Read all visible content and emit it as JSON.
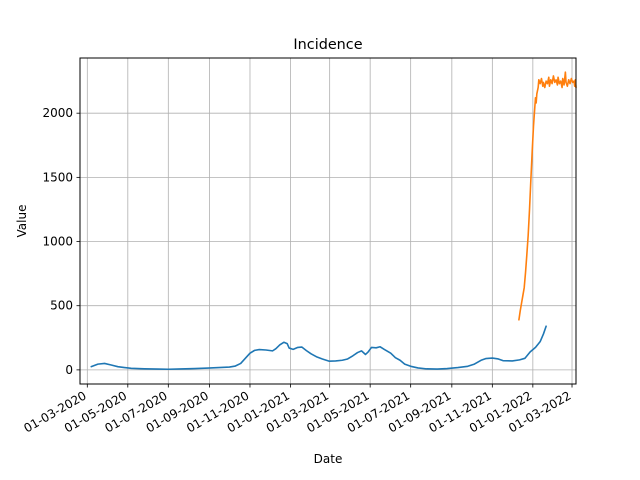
{
  "chart_data": {
    "type": "line",
    "title": "Incidence",
    "xlabel": "Date",
    "ylabel": "Value",
    "x_ticks": [
      "01-03-2020",
      "01-05-2020",
      "01-07-2020",
      "01-09-2020",
      "01-11-2020",
      "01-01-2021",
      "01-03-2021",
      "01-05-2021",
      "01-07-2021",
      "01-09-2021",
      "01-11-2021",
      "01-01-2022",
      "01-03-2022"
    ],
    "y_ticks": [
      0,
      500,
      1000,
      1500,
      2000
    ],
    "xlim": [
      "2020-02-19",
      "2022-03-07"
    ],
    "ylim": [
      -110,
      2430
    ],
    "grid": true,
    "series": [
      {
        "color": "#1f77b4",
        "points": [
          [
            "2020-03-07",
            25
          ],
          [
            "2020-03-17",
            45
          ],
          [
            "2020-03-27",
            50
          ],
          [
            "2020-04-06",
            38
          ],
          [
            "2020-04-16",
            25
          ],
          [
            "2020-04-26",
            18
          ],
          [
            "2020-05-06",
            12
          ],
          [
            "2020-05-26",
            8
          ],
          [
            "2020-06-15",
            6
          ],
          [
            "2020-07-01",
            5
          ],
          [
            "2020-07-20",
            7
          ],
          [
            "2020-08-10",
            10
          ],
          [
            "2020-08-30",
            14
          ],
          [
            "2020-09-15",
            18
          ],
          [
            "2020-10-01",
            22
          ],
          [
            "2020-10-10",
            30
          ],
          [
            "2020-10-18",
            50
          ],
          [
            "2020-10-25",
            90
          ],
          [
            "2020-11-01",
            130
          ],
          [
            "2020-11-08",
            152
          ],
          [
            "2020-11-15",
            158
          ],
          [
            "2020-11-25",
            155
          ],
          [
            "2020-12-05",
            148
          ],
          [
            "2020-12-10",
            165
          ],
          [
            "2020-12-16",
            195
          ],
          [
            "2020-12-22",
            215
          ],
          [
            "2020-12-27",
            205
          ],
          [
            "2020-12-30",
            170
          ],
          [
            "2021-01-05",
            160
          ],
          [
            "2021-01-12",
            175
          ],
          [
            "2021-01-18",
            178
          ],
          [
            "2021-01-25",
            150
          ],
          [
            "2021-02-01",
            125
          ],
          [
            "2021-02-10",
            100
          ],
          [
            "2021-02-18",
            85
          ],
          [
            "2021-02-28",
            68
          ],
          [
            "2021-03-10",
            70
          ],
          [
            "2021-03-20",
            75
          ],
          [
            "2021-03-28",
            85
          ],
          [
            "2021-04-05",
            110
          ],
          [
            "2021-04-12",
            135
          ],
          [
            "2021-04-18",
            148
          ],
          [
            "2021-04-24",
            120
          ],
          [
            "2021-04-28",
            140
          ],
          [
            "2021-05-03",
            175
          ],
          [
            "2021-05-10",
            172
          ],
          [
            "2021-05-16",
            180
          ],
          [
            "2021-05-22",
            160
          ],
          [
            "2021-06-01",
            130
          ],
          [
            "2021-06-08",
            95
          ],
          [
            "2021-06-15",
            75
          ],
          [
            "2021-06-22",
            45
          ],
          [
            "2021-07-01",
            28
          ],
          [
            "2021-07-12",
            15
          ],
          [
            "2021-07-25",
            8
          ],
          [
            "2021-08-10",
            6
          ],
          [
            "2021-08-25",
            10
          ],
          [
            "2021-09-10",
            18
          ],
          [
            "2021-09-25",
            28
          ],
          [
            "2021-10-05",
            45
          ],
          [
            "2021-10-15",
            75
          ],
          [
            "2021-10-22",
            88
          ],
          [
            "2021-11-01",
            92
          ],
          [
            "2021-11-10",
            85
          ],
          [
            "2021-11-17",
            72
          ],
          [
            "2021-12-01",
            70
          ],
          [
            "2021-12-12",
            78
          ],
          [
            "2021-12-20",
            90
          ],
          [
            "2021-12-28",
            140
          ],
          [
            "2022-01-05",
            175
          ],
          [
            "2022-01-12",
            220
          ],
          [
            "2022-01-17",
            280
          ],
          [
            "2022-01-21",
            340
          ]
        ]
      },
      {
        "color": "#ff7f0e",
        "points": [
          [
            "2021-12-11",
            390
          ],
          [
            "2021-12-13",
            460
          ],
          [
            "2021-12-15",
            520
          ],
          [
            "2021-12-17",
            580
          ],
          [
            "2021-12-19",
            640
          ],
          [
            "2021-12-21",
            760
          ],
          [
            "2021-12-23",
            900
          ],
          [
            "2021-12-25",
            1050
          ],
          [
            "2021-12-27",
            1250
          ],
          [
            "2021-12-29",
            1480
          ],
          [
            "2021-12-31",
            1700
          ],
          [
            "2022-01-02",
            1900
          ],
          [
            "2022-01-04",
            2050
          ],
          [
            "2022-01-05",
            2120
          ],
          [
            "2022-01-06",
            2080
          ],
          [
            "2022-01-07",
            2150
          ],
          [
            "2022-01-09",
            2200
          ],
          [
            "2022-01-10",
            2260
          ],
          [
            "2022-01-12",
            2230
          ],
          [
            "2022-01-14",
            2270
          ],
          [
            "2022-01-16",
            2210
          ],
          [
            "2022-01-17",
            2240
          ],
          [
            "2022-01-19",
            2200
          ],
          [
            "2022-01-21",
            2250
          ],
          [
            "2022-01-23",
            2230
          ],
          [
            "2022-01-25",
            2280
          ],
          [
            "2022-01-26",
            2210
          ],
          [
            "2022-01-28",
            2260
          ],
          [
            "2022-01-30",
            2230
          ],
          [
            "2022-02-01",
            2290
          ],
          [
            "2022-02-03",
            2240
          ],
          [
            "2022-02-05",
            2260
          ],
          [
            "2022-02-07",
            2220
          ],
          [
            "2022-02-08",
            2280
          ],
          [
            "2022-02-10",
            2230
          ],
          [
            "2022-02-12",
            2250
          ],
          [
            "2022-02-14",
            2200
          ],
          [
            "2022-02-15",
            2270
          ],
          [
            "2022-02-17",
            2220
          ],
          [
            "2022-02-19",
            2320
          ],
          [
            "2022-02-20",
            2240
          ],
          [
            "2022-02-22",
            2210
          ],
          [
            "2022-02-24",
            2260
          ],
          [
            "2022-02-26",
            2230
          ],
          [
            "2022-02-28",
            2270
          ],
          [
            "2022-03-02",
            2240
          ],
          [
            "2022-03-04",
            2250
          ],
          [
            "2022-03-05",
            2210
          ],
          [
            "2022-03-06",
            2260
          ],
          [
            "2022-03-07",
            2200
          ]
        ]
      }
    ]
  }
}
